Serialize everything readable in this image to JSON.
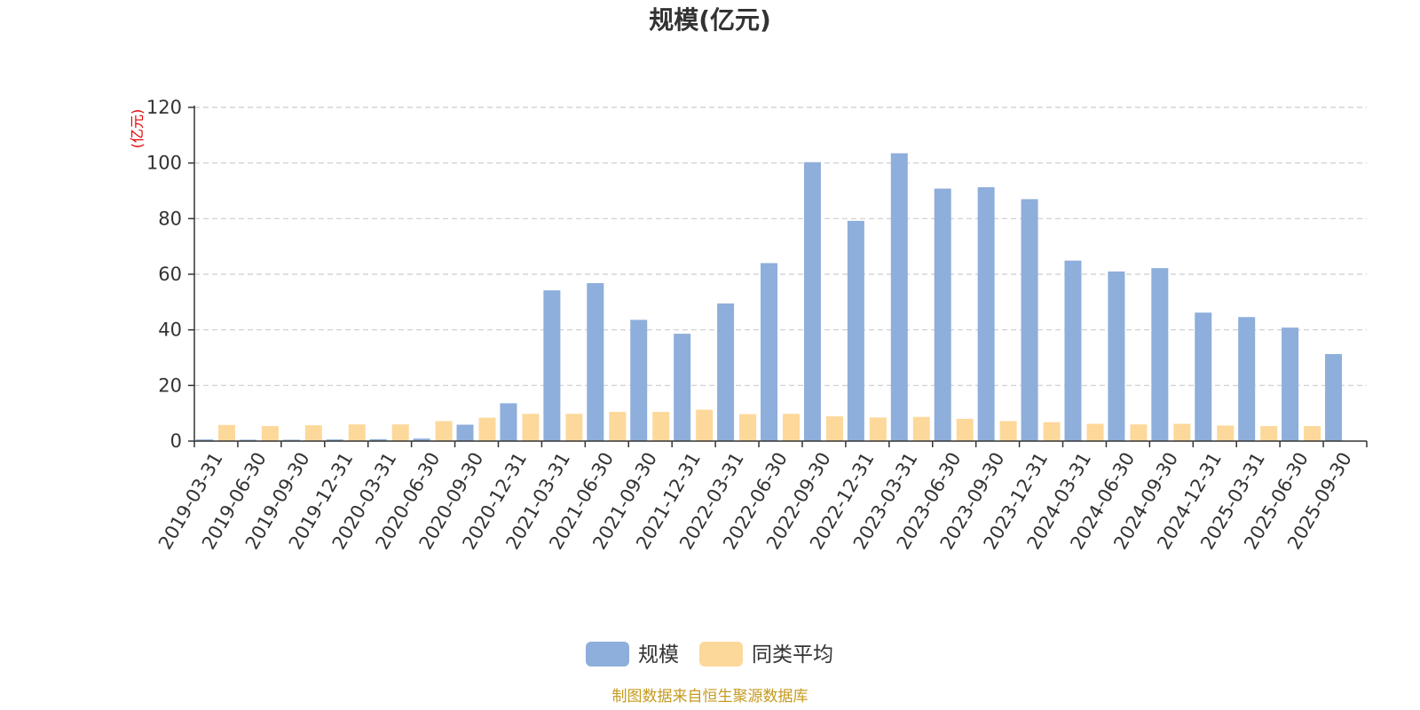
{
  "chart_data": {
    "type": "bar",
    "title": "规模(亿元)",
    "ylabel": "(亿元)",
    "ylim": [
      0,
      120
    ],
    "yticks": [
      0,
      20,
      40,
      60,
      80,
      100,
      120
    ],
    "grid": true,
    "categories": [
      "2019-03-31",
      "2019-06-30",
      "2019-09-30",
      "2019-12-31",
      "2020-03-31",
      "2020-06-30",
      "2020-09-30",
      "2020-12-31",
      "2021-03-31",
      "2021-06-30",
      "2021-09-30",
      "2021-12-31",
      "2022-03-31",
      "2022-06-30",
      "2022-09-30",
      "2022-12-31",
      "2023-03-31",
      "2023-06-30",
      "2023-09-30",
      "2023-12-31",
      "2024-03-31",
      "2024-06-30",
      "2024-09-30",
      "2024-12-31",
      "2025-03-31",
      "2025-06-30",
      "2025-09-30"
    ],
    "series": [
      {
        "name": "规模",
        "color": "#8eaedb",
        "values": [
          0.6,
          0.5,
          0.5,
          0.6,
          0.7,
          0.9,
          5.9,
          13.6,
          54.2,
          56.8,
          43.6,
          38.6,
          49.5,
          64.0,
          100.3,
          79.2,
          103.5,
          90.8,
          91.3,
          87.0,
          64.9,
          61.0,
          62.2,
          46.2,
          44.6,
          40.8,
          31.3
        ]
      },
      {
        "name": "同类平均",
        "color": "#fdd89b",
        "values": [
          5.8,
          5.4,
          5.7,
          6.0,
          6.0,
          7.2,
          8.4,
          9.8,
          9.8,
          10.5,
          10.5,
          11.3,
          9.7,
          9.8,
          8.9,
          8.5,
          8.7,
          8.0,
          7.2,
          6.8,
          6.2,
          6.0,
          6.2,
          5.6,
          5.4,
          5.4,
          0
        ]
      }
    ],
    "legend": "bottom-center"
  },
  "source_text": "制图数据来自恒生聚源数据库"
}
